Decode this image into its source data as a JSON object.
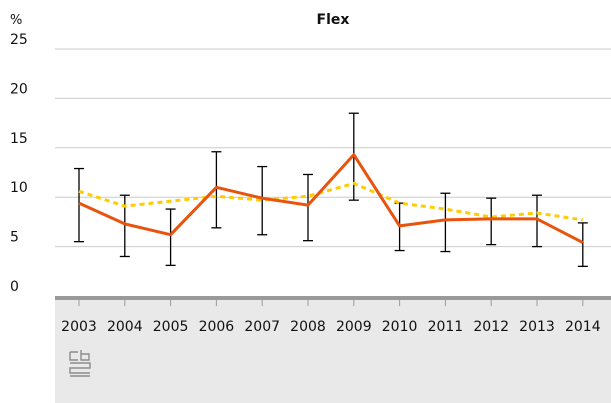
{
  "chart_data": {
    "type": "line",
    "title": "Flex",
    "unit_label": "%",
    "xlabel": "",
    "ylabel": "",
    "categories": [
      "2003",
      "2004",
      "2005",
      "2006",
      "2007",
      "2008",
      "2009",
      "2010",
      "2011",
      "2012",
      "2013",
      "2014"
    ],
    "y_ticks": [
      0,
      5,
      10,
      15,
      20,
      25
    ],
    "ylim": [
      0,
      25
    ],
    "grid": true,
    "legend": "none",
    "series": [
      {
        "style": "solid",
        "color": "#e8530e",
        "values": [
          9.4,
          7.3,
          6.2,
          11.0,
          9.9,
          9.2,
          14.3,
          7.1,
          7.7,
          7.8,
          7.8,
          5.4
        ]
      },
      {
        "style": "dotted",
        "color": "#ffcc00",
        "values": [
          10.6,
          9.1,
          9.6,
          10.1,
          9.7,
          10.1,
          11.4,
          9.4,
          8.8,
          8.0,
          8.4,
          7.7
        ]
      }
    ],
    "error_bars": {
      "series_index": 0,
      "color": "#000000",
      "low": [
        5.5,
        4.0,
        3.1,
        6.9,
        6.2,
        5.6,
        9.7,
        4.6,
        4.5,
        5.2,
        5.0,
        3.0
      ],
      "high": [
        12.9,
        10.2,
        8.8,
        14.6,
        13.1,
        12.3,
        18.5,
        9.4,
        10.4,
        9.9,
        10.2,
        7.4
      ]
    }
  },
  "colors": {
    "grid": "#cccccc",
    "axis": "#9a9a9a",
    "footer_band": "#e9e9e9",
    "logo": "#8c8c8c"
  },
  "logo_icon": "cbs-logo-icon"
}
